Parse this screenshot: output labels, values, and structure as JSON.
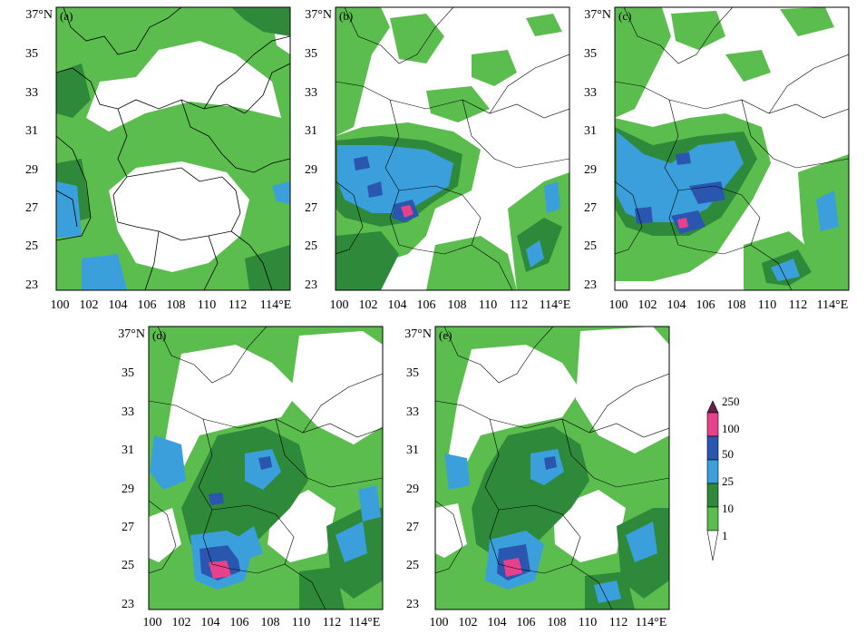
{
  "figure": {
    "x_ticks": [
      "100",
      "102",
      "104",
      "106",
      "108",
      "110",
      "112",
      "114°E"
    ],
    "y_ticks": [
      "23",
      "25",
      "27",
      "29",
      "31",
      "33",
      "35",
      "37°N"
    ],
    "colors": {
      "green_light": "#5cbd4f",
      "green_dark": "#2e8a3a",
      "blue_light": "#3b9fdb",
      "blue_dark": "#2a56b0",
      "pink": "#e8408a",
      "white": "#ffffff",
      "border": "#000000"
    },
    "panels": [
      {
        "id": "a",
        "label": "(a)"
      },
      {
        "id": "b",
        "label": "(b)"
      },
      {
        "id": "c",
        "label": "(c)"
      },
      {
        "id": "d",
        "label": "(d)"
      },
      {
        "id": "e",
        "label": "(e)"
      }
    ],
    "legend": {
      "levels": [
        "250",
        "100",
        "50",
        "25",
        "10",
        "1"
      ]
    }
  }
}
